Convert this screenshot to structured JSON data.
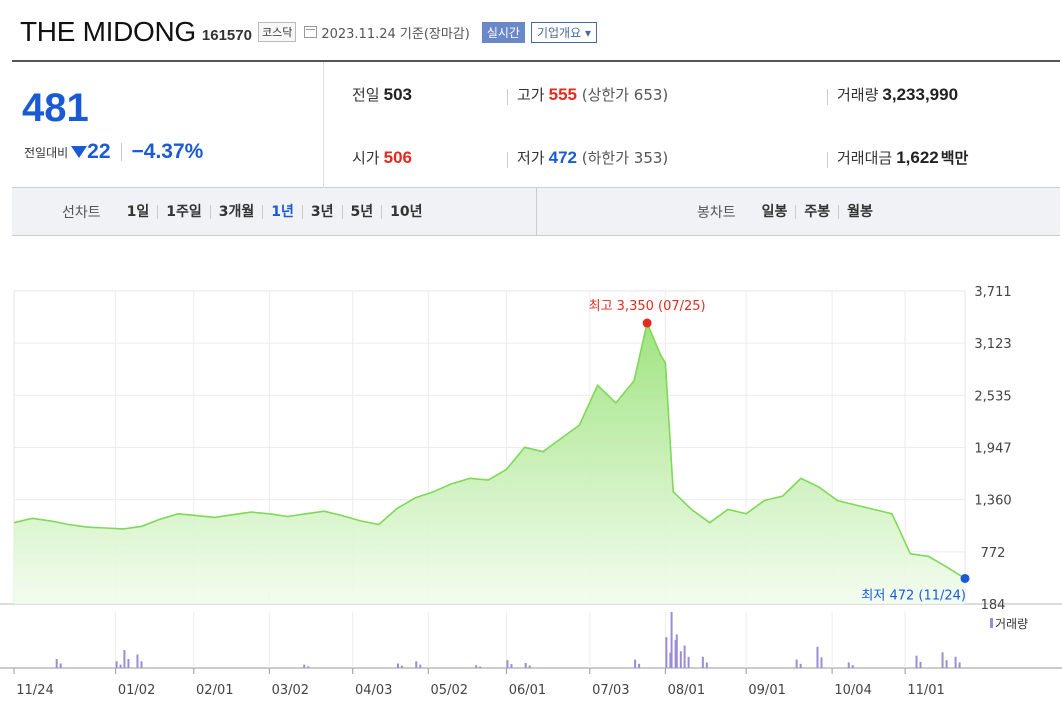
{
  "header": {
    "name": "THE MIDONG",
    "code": "161570",
    "market": "코스닥",
    "date": "2023.11.24 기준(장마감)",
    "realtime": "실시간",
    "company": "기업개요 ▾"
  },
  "summary": {
    "price": "481",
    "change_label": "전일대비",
    "change": "22",
    "change_pct": "−4.37%",
    "prev_label": "전일",
    "prev": "503",
    "open_label": "시가",
    "open": "506",
    "high_label": "고가",
    "high": "555",
    "upper_label": "(상한가 653)",
    "low_label": "저가",
    "low": "472",
    "lower_label": "(하한가 353)",
    "volume_label": "거래량",
    "volume": "3,233,990",
    "value_label": "거래대금",
    "value": "1,622",
    "value_unit": "백만"
  },
  "tabs": {
    "line_label": "선차트",
    "line_items": [
      "1일",
      "1주일",
      "3개월",
      "1년",
      "3년",
      "5년",
      "10년"
    ],
    "line_active": "1년",
    "candle_label": "봉차트",
    "candle_items": [
      "일봉",
      "주봉",
      "월봉"
    ]
  },
  "colors": {
    "up": "#e52a1e",
    "down": "#1a5bd4",
    "area_line": "#7ed957",
    "volume": "#9a8dd4"
  },
  "chart_data": {
    "type": "area",
    "ylim": [
      184,
      3711
    ],
    "yticks": [
      "3,711",
      "3,123",
      "2,535",
      "1,947",
      "1,360",
      "772",
      "184"
    ],
    "xticks": [
      "11/24",
      "01/02",
      "02/01",
      "03/02",
      "04/03",
      "05/02",
      "06/01",
      "07/03",
      "08/01",
      "09/01",
      "10/04",
      "11/01"
    ],
    "max_label": "최고 3,350 (07/25)",
    "min_label": "최저 472 (11/24)",
    "volume_label": "거래량",
    "price_series": [
      [
        "11/24",
        1100
      ],
      [
        "12/01",
        1150
      ],
      [
        "12/08",
        1120
      ],
      [
        "12/15",
        1080
      ],
      [
        "12/22",
        1050
      ],
      [
        "12/29",
        1040
      ],
      [
        "01/05",
        1030
      ],
      [
        "01/12",
        1060
      ],
      [
        "01/19",
        1140
      ],
      [
        "01/26",
        1200
      ],
      [
        "02/02",
        1180
      ],
      [
        "02/09",
        1160
      ],
      [
        "02/16",
        1190
      ],
      [
        "02/23",
        1220
      ],
      [
        "03/02",
        1200
      ],
      [
        "03/09",
        1170
      ],
      [
        "03/16",
        1200
      ],
      [
        "03/23",
        1230
      ],
      [
        "03/30",
        1180
      ],
      [
        "04/06",
        1120
      ],
      [
        "04/13",
        1080
      ],
      [
        "04/20",
        1260
      ],
      [
        "04/27",
        1380
      ],
      [
        "05/04",
        1450
      ],
      [
        "05/11",
        1540
      ],
      [
        "05/18",
        1600
      ],
      [
        "05/25",
        1580
      ],
      [
        "06/01",
        1700
      ],
      [
        "06/08",
        1950
      ],
      [
        "06/15",
        1900
      ],
      [
        "06/22",
        2050
      ],
      [
        "06/29",
        2200
      ],
      [
        "07/06",
        2650
      ],
      [
        "07/13",
        2450
      ],
      [
        "07/20",
        2700
      ],
      [
        "07/25",
        3350
      ],
      [
        "07/30",
        3000
      ],
      [
        "08/01",
        2900
      ],
      [
        "08/04",
        1450
      ],
      [
        "08/11",
        1250
      ],
      [
        "08/18",
        1100
      ],
      [
        "08/25",
        1250
      ],
      [
        "09/01",
        1200
      ],
      [
        "09/08",
        1350
      ],
      [
        "09/15",
        1400
      ],
      [
        "09/22",
        1600
      ],
      [
        "09/29",
        1500
      ],
      [
        "10/06",
        1350
      ],
      [
        "10/13",
        1300
      ],
      [
        "10/20",
        1250
      ],
      [
        "10/27",
        1200
      ],
      [
        "11/03",
        750
      ],
      [
        "11/10",
        720
      ],
      [
        "11/17",
        600
      ],
      [
        "11/24",
        472
      ]
    ],
    "volume_series": [
      [
        "12/10",
        0.16
      ],
      [
        "01/02",
        0.12
      ],
      [
        "01/05",
        0.32
      ],
      [
        "01/10",
        0.24
      ],
      [
        "03/15",
        0.06
      ],
      [
        "04/20",
        0.08
      ],
      [
        "04/27",
        0.12
      ],
      [
        "05/20",
        0.05
      ],
      [
        "06/01",
        0.14
      ],
      [
        "06/08",
        0.09
      ],
      [
        "07/20",
        0.15
      ],
      [
        "08/01",
        0.55
      ],
      [
        "08/03",
        1.0
      ],
      [
        "08/05",
        0.6
      ],
      [
        "08/08",
        0.4
      ],
      [
        "08/15",
        0.2
      ],
      [
        "09/20",
        0.15
      ],
      [
        "09/28",
        0.38
      ],
      [
        "10/10",
        0.1
      ],
      [
        "11/05",
        0.22
      ],
      [
        "11/15",
        0.28
      ],
      [
        "11/20",
        0.2
      ]
    ]
  }
}
